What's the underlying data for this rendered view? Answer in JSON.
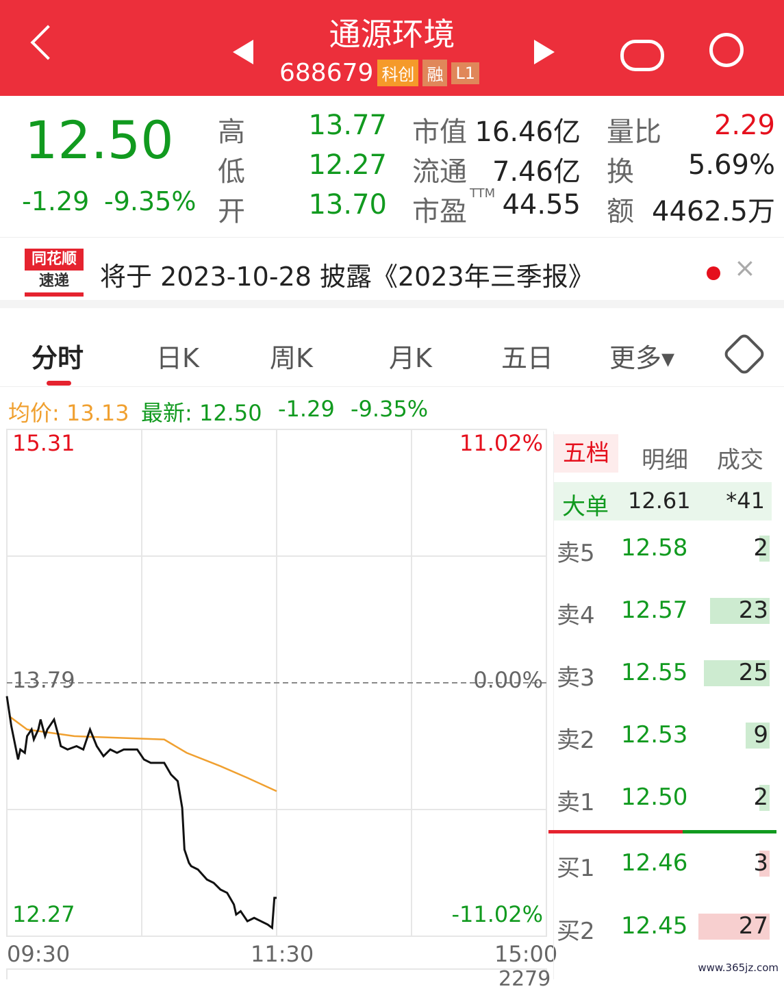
{
  "header": {
    "title": "通源环境",
    "code": "688679",
    "tags": [
      "科创",
      "融",
      "L1"
    ]
  },
  "quote": {
    "price": "12.50",
    "change": "-1.29",
    "change_pct": "-9.35%",
    "stats": [
      {
        "label": "高",
        "value": "13.77",
        "color": "#119a1f"
      },
      {
        "label": "市值",
        "value": "16.46亿",
        "color": "#222"
      },
      {
        "label": "量比",
        "value": "2.29",
        "color": "#e5101d"
      },
      {
        "label": "低",
        "value": "12.27",
        "color": "#119a1f"
      },
      {
        "label": "流通",
        "value": "7.46亿",
        "color": "#222"
      },
      {
        "label": "换",
        "value": "5.69%",
        "color": "#222"
      },
      {
        "label": "开",
        "value": "13.70",
        "color": "#119a1f"
      },
      {
        "label": "市盈",
        "value": "44.55",
        "color": "#222"
      },
      {
        "label": "额",
        "value": "4462.5万",
        "color": "#222"
      }
    ],
    "ttm": "TTM"
  },
  "notice": {
    "logo_top": "同花顺",
    "logo_bottom": "速递",
    "text": "将于 2023-10-28 披露《2023年三季报》"
  },
  "tabs": [
    "分时",
    "日K",
    "周K",
    "月K",
    "五日",
    "更多▾"
  ],
  "info": {
    "avg_label": "均价: 13.13",
    "latest_label": "最新: 12.50",
    "change": "-1.29",
    "pct": "-9.35%"
  },
  "chart_data": {
    "type": "line",
    "ylim": [
      12.27,
      15.31
    ],
    "prev_close": 13.79,
    "y_labels": {
      "top": "15.31",
      "mid": "13.79",
      "bottom": "12.27",
      "top_pct": "11.02%",
      "mid_pct": "0.00%",
      "bottom_pct": "-11.02%"
    },
    "x_labels": [
      "09:30",
      "11:30",
      "15:00"
    ],
    "x_range_minutes": [
      0,
      240
    ],
    "series": [
      {
        "values": [
          [
            0,
            13.71
          ],
          [
            2,
            13.53
          ],
          [
            5,
            13.33
          ],
          [
            6,
            13.39
          ],
          [
            8,
            13.37
          ],
          [
            9,
            13.47
          ],
          [
            11,
            13.51
          ],
          [
            12,
            13.45
          ],
          [
            14,
            13.51
          ],
          [
            15,
            13.57
          ],
          [
            17,
            13.47
          ],
          [
            18,
            13.51
          ],
          [
            20,
            13.55
          ],
          [
            21,
            13.57
          ],
          [
            23,
            13.47
          ],
          [
            24,
            13.41
          ],
          [
            27,
            13.39
          ],
          [
            31,
            13.41
          ],
          [
            34,
            13.39
          ],
          [
            37,
            13.51
          ],
          [
            40,
            13.41
          ],
          [
            43,
            13.35
          ],
          [
            46,
            13.39
          ],
          [
            49,
            13.37
          ],
          [
            52,
            13.39
          ],
          [
            58,
            13.39
          ],
          [
            61,
            13.33
          ],
          [
            64,
            13.31
          ],
          [
            70,
            13.31
          ],
          [
            73,
            13.24
          ],
          [
            76,
            13.2
          ],
          [
            78,
            13.04
          ],
          [
            79,
            12.79
          ],
          [
            81,
            12.71
          ],
          [
            82,
            12.69
          ],
          [
            85,
            12.67
          ],
          [
            89,
            12.61
          ],
          [
            92,
            12.59
          ],
          [
            95,
            12.55
          ],
          [
            98,
            12.53
          ],
          [
            101,
            12.46
          ],
          [
            102,
            12.4
          ],
          [
            104,
            12.42
          ],
          [
            107,
            12.36
          ],
          [
            110,
            12.38
          ],
          [
            113,
            12.36
          ],
          [
            116,
            12.34
          ],
          [
            118,
            12.32
          ],
          [
            119,
            12.5
          ],
          [
            120,
            12.5
          ]
        ],
        "color": "#111"
      },
      {
        "values": [
          [
            1,
            13.59
          ],
          [
            9,
            13.51
          ],
          [
            30,
            13.47
          ],
          [
            70,
            13.45
          ],
          [
            80,
            13.37
          ],
          [
            95,
            13.29
          ],
          [
            107,
            13.22
          ],
          [
            120,
            13.14
          ]
        ],
        "color": "#f0a030"
      }
    ]
  },
  "orderbook": {
    "tabs": [
      "五档",
      "明细",
      "成交"
    ],
    "big": {
      "label": "大单",
      "price": "12.61",
      "qty": "*41"
    },
    "asks": [
      {
        "label": "卖5",
        "price": "12.58",
        "qty": "2",
        "fill": 0.05
      },
      {
        "label": "卖4",
        "price": "12.57",
        "qty": "23",
        "fill": 0.3
      },
      {
        "label": "卖3",
        "price": "12.55",
        "qty": "25",
        "fill": 0.33
      },
      {
        "label": "卖2",
        "price": "12.53",
        "qty": "9",
        "fill": 0.12
      },
      {
        "label": "卖1",
        "price": "12.50",
        "qty": "2",
        "fill": 0.05
      }
    ],
    "bids": [
      {
        "label": "买1",
        "price": "12.46",
        "qty": "3",
        "fill": 0.05
      },
      {
        "label": "买2",
        "price": "12.45",
        "qty": "27",
        "fill": 0.36
      }
    ]
  },
  "volume_label": "2279",
  "watermark": "www.365jz.com"
}
